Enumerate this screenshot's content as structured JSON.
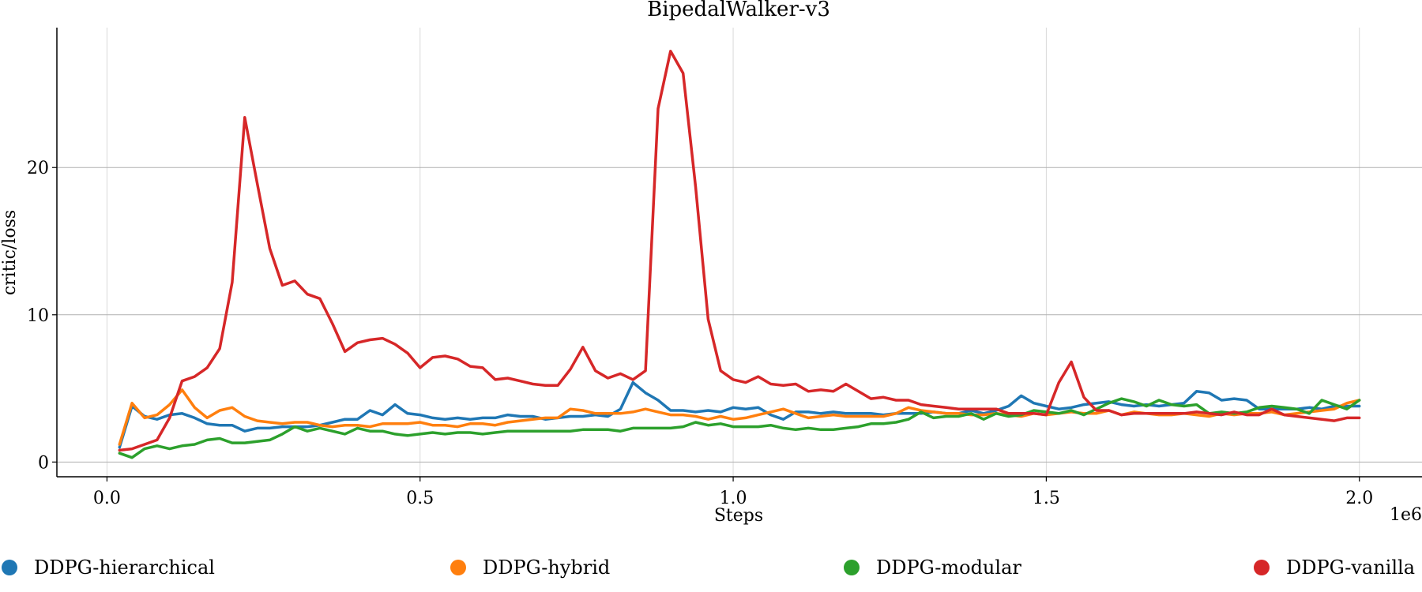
{
  "chart_data": {
    "type": "line",
    "title": "BipedalWalker-v3",
    "xlabel": "Steps",
    "ylabel": "critic/loss",
    "x_offset_label": "1e6",
    "xlim": [
      -0.08,
      2.1
    ],
    "ylim": [
      -1.0,
      29.5
    ],
    "xticks": [
      0.0,
      0.5,
      1.0,
      1.5,
      2.0
    ],
    "xtick_labels": [
      "0.0",
      "0.5",
      "1.0",
      "1.5",
      "2.0"
    ],
    "yticks": [
      0,
      10,
      20
    ],
    "ytick_labels": [
      "0",
      "10",
      "20"
    ],
    "grid": true,
    "legend_position": "bottom",
    "x": [
      0.02,
      0.04,
      0.06,
      0.08,
      0.1,
      0.12,
      0.14,
      0.16,
      0.18,
      0.2,
      0.22,
      0.24,
      0.26,
      0.28,
      0.3,
      0.32,
      0.34,
      0.36,
      0.38,
      0.4,
      0.42,
      0.44,
      0.46,
      0.48,
      0.5,
      0.52,
      0.54,
      0.56,
      0.58,
      0.6,
      0.62,
      0.64,
      0.66,
      0.68,
      0.7,
      0.72,
      0.74,
      0.76,
      0.78,
      0.8,
      0.82,
      0.84,
      0.86,
      0.88,
      0.9,
      0.92,
      0.94,
      0.96,
      0.98,
      1.0,
      1.02,
      1.04,
      1.06,
      1.08,
      1.1,
      1.12,
      1.14,
      1.16,
      1.18,
      1.2,
      1.22,
      1.24,
      1.26,
      1.28,
      1.3,
      1.32,
      1.34,
      1.36,
      1.38,
      1.4,
      1.42,
      1.44,
      1.46,
      1.48,
      1.5,
      1.52,
      1.54,
      1.56,
      1.58,
      1.6,
      1.62,
      1.64,
      1.66,
      1.68,
      1.7,
      1.72,
      1.74,
      1.76,
      1.78,
      1.8,
      1.82,
      1.84,
      1.86,
      1.88,
      1.9,
      1.92,
      1.94,
      1.96,
      1.98,
      2.0
    ],
    "series": [
      {
        "name": "DDPG-hierarchical",
        "color": "#1f77b4",
        "values": [
          1.0,
          3.8,
          3.1,
          2.9,
          3.2,
          3.3,
          3.0,
          2.6,
          2.5,
          2.5,
          2.1,
          2.3,
          2.3,
          2.4,
          2.4,
          2.4,
          2.5,
          2.7,
          2.9,
          2.9,
          3.5,
          3.2,
          3.9,
          3.3,
          3.2,
          3.0,
          2.9,
          3.0,
          2.9,
          3.0,
          3.0,
          3.2,
          3.1,
          3.1,
          2.9,
          3.0,
          3.1,
          3.1,
          3.2,
          3.1,
          3.6,
          5.4,
          4.7,
          4.2,
          3.5,
          3.5,
          3.4,
          3.5,
          3.4,
          3.7,
          3.6,
          3.7,
          3.2,
          2.9,
          3.4,
          3.4,
          3.3,
          3.4,
          3.3,
          3.3,
          3.3,
          3.2,
          3.3,
          3.3,
          3.3,
          3.4,
          3.3,
          3.3,
          3.5,
          3.3,
          3.5,
          3.8,
          4.5,
          4.0,
          3.8,
          3.6,
          3.7,
          3.9,
          4.0,
          4.1,
          3.9,
          3.8,
          3.9,
          3.8,
          3.9,
          4.0,
          4.8,
          4.7,
          4.2,
          4.3,
          4.2,
          3.6,
          3.6,
          3.6,
          3.6,
          3.7,
          3.6,
          3.8,
          3.8,
          3.8
        ]
      },
      {
        "name": "DDPG-hybrid",
        "color": "#ff7f0e",
        "values": [
          1.2,
          4.0,
          3.0,
          3.2,
          3.9,
          4.9,
          3.7,
          3.0,
          3.5,
          3.7,
          3.1,
          2.8,
          2.7,
          2.6,
          2.7,
          2.7,
          2.5,
          2.4,
          2.5,
          2.5,
          2.4,
          2.6,
          2.6,
          2.6,
          2.7,
          2.5,
          2.5,
          2.4,
          2.6,
          2.6,
          2.5,
          2.7,
          2.8,
          2.9,
          3.0,
          3.0,
          3.6,
          3.5,
          3.3,
          3.3,
          3.3,
          3.4,
          3.6,
          3.4,
          3.2,
          3.2,
          3.1,
          2.9,
          3.1,
          2.9,
          3.0,
          3.2,
          3.4,
          3.6,
          3.3,
          3.0,
          3.1,
          3.2,
          3.1,
          3.1,
          3.1,
          3.1,
          3.3,
          3.7,
          3.5,
          3.4,
          3.3,
          3.3,
          3.2,
          3.2,
          3.3,
          3.2,
          3.1,
          3.3,
          3.2,
          3.3,
          3.4,
          3.3,
          3.3,
          3.5,
          3.2,
          3.4,
          3.3,
          3.2,
          3.2,
          3.3,
          3.2,
          3.1,
          3.3,
          3.2,
          3.3,
          3.3,
          3.4,
          3.2,
          3.3,
          3.4,
          3.5,
          3.6,
          4.0,
          4.2
        ]
      },
      {
        "name": "DDPG-modular",
        "color": "#2ca02c",
        "values": [
          0.6,
          0.3,
          0.9,
          1.1,
          0.9,
          1.1,
          1.2,
          1.5,
          1.6,
          1.3,
          1.3,
          1.4,
          1.5,
          1.9,
          2.4,
          2.1,
          2.3,
          2.1,
          1.9,
          2.3,
          2.1,
          2.1,
          1.9,
          1.8,
          1.9,
          2.0,
          1.9,
          2.0,
          2.0,
          1.9,
          2.0,
          2.1,
          2.1,
          2.1,
          2.1,
          2.1,
          2.1,
          2.2,
          2.2,
          2.2,
          2.1,
          2.3,
          2.3,
          2.3,
          2.3,
          2.4,
          2.7,
          2.5,
          2.6,
          2.4,
          2.4,
          2.4,
          2.5,
          2.3,
          2.2,
          2.3,
          2.2,
          2.2,
          2.3,
          2.4,
          2.6,
          2.6,
          2.7,
          2.9,
          3.4,
          3.0,
          3.1,
          3.1,
          3.3,
          2.9,
          3.3,
          3.1,
          3.2,
          3.5,
          3.4,
          3.3,
          3.5,
          3.2,
          3.6,
          4.0,
          4.3,
          4.1,
          3.8,
          4.2,
          3.9,
          3.8,
          3.9,
          3.3,
          3.4,
          3.3,
          3.4,
          3.7,
          3.8,
          3.7,
          3.6,
          3.3,
          4.2,
          3.9,
          3.6,
          4.2
        ]
      },
      {
        "name": "DDPG-vanilla",
        "color": "#d62728",
        "values": [
          0.8,
          0.9,
          1.2,
          1.5,
          3.0,
          5.5,
          5.8,
          6.4,
          7.7,
          12.2,
          23.4,
          18.9,
          14.5,
          12.0,
          12.3,
          11.4,
          11.1,
          9.4,
          7.5,
          8.1,
          8.3,
          8.4,
          8.0,
          7.4,
          6.4,
          7.1,
          7.2,
          7.0,
          6.5,
          6.4,
          5.6,
          5.7,
          5.5,
          5.3,
          5.2,
          5.2,
          6.3,
          7.8,
          6.2,
          5.7,
          6.0,
          5.6,
          6.2,
          24.0,
          27.9,
          26.4,
          18.7,
          9.7,
          6.2,
          5.6,
          5.4,
          5.8,
          5.3,
          5.2,
          5.3,
          4.8,
          4.9,
          4.8,
          5.3,
          4.8,
          4.3,
          4.4,
          4.2,
          4.2,
          3.9,
          3.8,
          3.7,
          3.6,
          3.6,
          3.6,
          3.6,
          3.3,
          3.3,
          3.3,
          3.2,
          5.4,
          6.8,
          4.4,
          3.5,
          3.5,
          3.2,
          3.3,
          3.3,
          3.3,
          3.3,
          3.3,
          3.4,
          3.3,
          3.2,
          3.4,
          3.2,
          3.2,
          3.6,
          3.2,
          3.1,
          3.0,
          2.9,
          2.8,
          3.0,
          3.0
        ]
      }
    ]
  }
}
